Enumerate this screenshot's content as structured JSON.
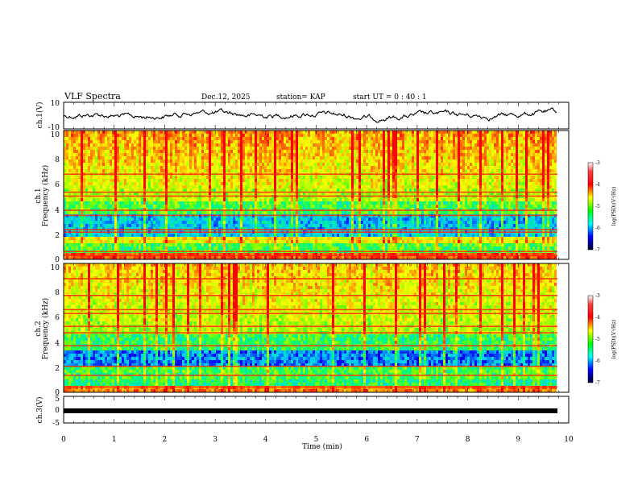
{
  "header": {
    "title": "VLF Spectra",
    "date": "Dec.12, 2025",
    "station": "station= KAP",
    "start": "start  UT =  0 : 40 : 1"
  },
  "chart_data": [
    {
      "type": "line",
      "name": "ch1-waveform",
      "ylabel": "ch.1(V)",
      "ylim": [
        -10,
        10
      ],
      "yticks": [
        "10",
        "-10"
      ],
      "xlim": [
        0,
        10
      ],
      "description_of_signal": "noisy waveform around 0 V"
    },
    {
      "type": "heatmap",
      "name": "ch1-spectrogram",
      "ylabel_line1": "ch.1",
      "ylabel_line2": "Frequency (kHz)",
      "ylim": [
        0,
        10
      ],
      "yticks": [
        "0",
        "2",
        "4",
        "6",
        "8",
        "10"
      ],
      "xlim": [
        0,
        9.8
      ],
      "colorbar": {
        "label": "log(PSD)(V²/Hz)",
        "range": [
          -7,
          -3
        ],
        "ticks": [
          "-3",
          "-4",
          "-5",
          "-6",
          "-7"
        ]
      }
    },
    {
      "type": "heatmap",
      "name": "ch2-spectrogram",
      "ylabel_line1": "ch.2",
      "ylabel_line2": "Frequency (kHz)",
      "ylim": [
        0,
        10
      ],
      "yticks": [
        "0",
        "2",
        "4",
        "6",
        "8",
        "10"
      ],
      "xlim": [
        0,
        9.8
      ],
      "colorbar": {
        "label": "log(PSD)(V²/Hz)",
        "range": [
          -7,
          -3
        ],
        "ticks": [
          "-3",
          "-4",
          "-5",
          "-6",
          "-7"
        ]
      }
    },
    {
      "type": "line",
      "name": "ch3-signal",
      "ylabel": "ch.3(V)",
      "ylim": [
        -5,
        5
      ],
      "yticks": [
        "5",
        "0",
        "-5"
      ],
      "level": 0
    }
  ],
  "xaxis": {
    "label": "Time  (min)",
    "ticks": [
      "0",
      "1",
      "2",
      "3",
      "4",
      "5",
      "6",
      "7",
      "8",
      "9",
      "10"
    ],
    "range": [
      0,
      10
    ]
  },
  "colors": {
    "background": "#ffffff",
    "frame": "#000000"
  }
}
